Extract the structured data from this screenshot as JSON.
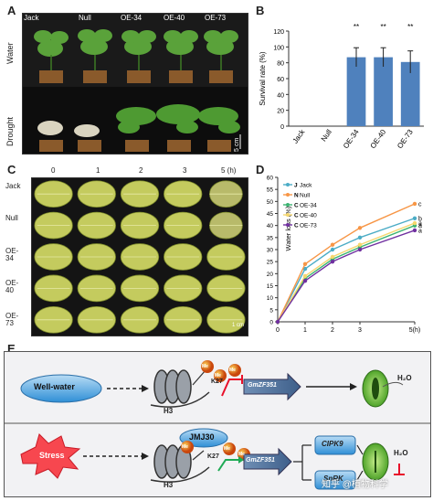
{
  "panels": {
    "a": "A",
    "b": "B",
    "c": "C",
    "d": "D",
    "e": "E"
  },
  "panel_a": {
    "genotypes": [
      "Jack",
      "Null",
      "OE-34",
      "OE-40",
      "OE-73"
    ],
    "row_water": "Water",
    "row_drought": "Drought",
    "scale": "5 cm"
  },
  "panel_c": {
    "timepoints": [
      "0",
      "1",
      "2",
      "3",
      "5 (h)"
    ],
    "rows": [
      "Jack",
      "Null",
      "OE-34",
      "OE-40",
      "OE-73"
    ],
    "scale": "1 cm"
  },
  "panel_e": {
    "well_water": "Well-water",
    "stress": "Stress",
    "jmj30": "JMJ30",
    "gene": "GmZF351",
    "h3": "H3",
    "k27": "K27",
    "me": "Me",
    "cipk9": "CIPK9",
    "snrk": "SnRK",
    "h2o": "H₂O"
  },
  "watermark": "知乎 @植物科学",
  "chart_data": [
    {
      "type": "bar",
      "title": "",
      "ylabel": "Survival rate (%)",
      "categories": [
        "Jack",
        "Null",
        "OE-34",
        "OE-40",
        "OE-73"
      ],
      "values": [
        0,
        0,
        87,
        87,
        81
      ],
      "errors": [
        0,
        0,
        12,
        12,
        14
      ],
      "annotations": [
        "",
        "",
        "**",
        "**",
        "**"
      ],
      "ylim": [
        0,
        120
      ],
      "yticks": [
        0,
        20,
        40,
        60,
        80,
        100,
        120
      ],
      "color": "#4f81bd"
    },
    {
      "type": "line",
      "ylabel": "Water loss (%)",
      "x": [
        0,
        1,
        2,
        3,
        5
      ],
      "xticks": [
        "0",
        "1",
        "2",
        "3",
        "5(h)"
      ],
      "ylim": [
        0,
        60
      ],
      "yticks": [
        0,
        5,
        10,
        15,
        20,
        25,
        30,
        35,
        40,
        45,
        50,
        55,
        60
      ],
      "legend_position": "top-left",
      "series": [
        {
          "name": "Jack",
          "legend_prefix": "J",
          "color": "#4bacc6",
          "values": [
            0,
            22,
            30,
            35,
            43
          ],
          "letter": "b"
        },
        {
          "name": "Null",
          "legend_prefix": "N",
          "color": "#f79646",
          "values": [
            0,
            24,
            32,
            39,
            49
          ],
          "letter": "c"
        },
        {
          "name": "OE-34",
          "legend_prefix": "C",
          "color": "#3cb371",
          "values": [
            0,
            18,
            26,
            31,
            40
          ],
          "letter": "a"
        },
        {
          "name": "OE-40",
          "legend_prefix": "C",
          "color": "#f5d76e",
          "values": [
            0,
            19,
            27,
            32,
            41
          ],
          "letter": "a"
        },
        {
          "name": "OE-73",
          "legend_prefix": "C",
          "color": "#7030a0",
          "values": [
            0,
            17,
            25,
            30,
            38
          ],
          "letter": "a"
        }
      ]
    }
  ]
}
